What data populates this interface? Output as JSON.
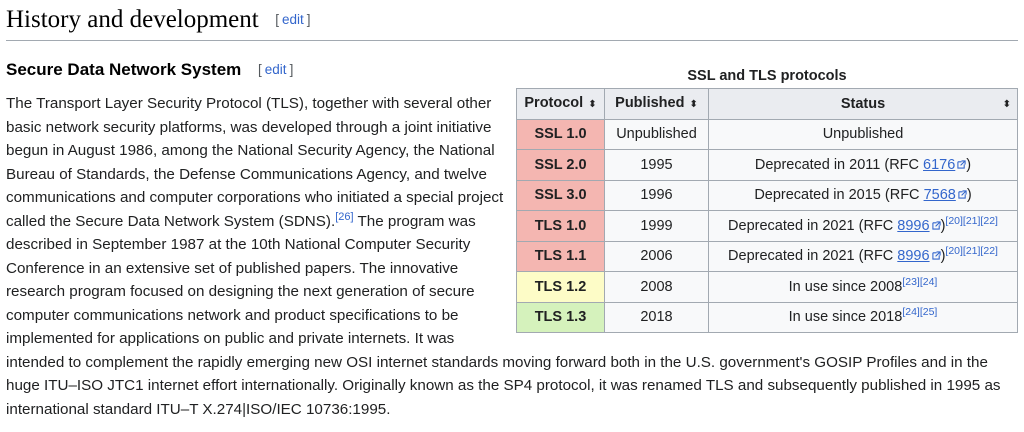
{
  "section": {
    "title": "History and development",
    "edit_label": "edit"
  },
  "subsection": {
    "title": "Secure Data Network System",
    "edit_label": "edit"
  },
  "paragraph": {
    "part1": "The Transport Layer Security Protocol (TLS), together with several other basic network security platforms, was developed through a joint initiative begun in August 1986, among the National Security Agency, the National Bureau of Standards, the Defense Communications Agency, and twelve communications and computer corporations who initiated a special project called the Secure Data Network System (SDNS).",
    "ref1": "[26]",
    "part2": " The program was described in September 1987 at the 10th National Computer Security Conference in an extensive set of published papers. The innovative research program focused on designing the next generation of secure computer communications network and product specifications to be implemented for applications on public and private internets. It was intended to complement the rapidly emerging new OSI internet standards moving forward both in the U.S. government's GOSIP Profiles and in the huge ITU–ISO JTC1 internet effort internationally. Originally known as the SP4 protocol, it was renamed TLS and subsequently published in 1995 as international standard ITU–T X.274|ISO/IEC 10736:1995."
  },
  "table": {
    "caption": "SSL and TLS protocols",
    "headers": [
      "Protocol",
      "Published",
      "Status"
    ],
    "sort_icon": "sort-arrows-icon",
    "colors": {
      "deprecated": "#f4b6b1",
      "current_old": "#fdfcc7",
      "current": "#d5f2bc"
    },
    "rows": [
      {
        "protocol": "SSL 1.0",
        "published": "Unpublished",
        "status_pre": "Unpublished",
        "rfc": "",
        "status_post": "",
        "refs": ""
      },
      {
        "protocol": "SSL 2.0",
        "published": "1995",
        "status_pre": "Deprecated in 2011 (RFC ",
        "rfc": "6176",
        "status_post": ")",
        "refs": ""
      },
      {
        "protocol": "SSL 3.0",
        "published": "1996",
        "status_pre": "Deprecated in 2015 (RFC ",
        "rfc": "7568",
        "status_post": ")",
        "refs": ""
      },
      {
        "protocol": "TLS 1.0",
        "published": "1999",
        "status_pre": "Deprecated in 2021 (RFC ",
        "rfc": "8996",
        "status_post": ")",
        "refs": "[20][21][22]"
      },
      {
        "protocol": "TLS 1.1",
        "published": "2006",
        "status_pre": "Deprecated in 2021 (RFC ",
        "rfc": "8996",
        "status_post": ")",
        "refs": "[20][21][22]"
      },
      {
        "protocol": "TLS 1.2",
        "published": "2008",
        "status_pre": "In use since 2008",
        "rfc": "",
        "status_post": "",
        "refs": "[23][24]"
      },
      {
        "protocol": "TLS 1.3",
        "published": "2018",
        "status_pre": "In use since 2018",
        "rfc": "",
        "status_post": "",
        "refs": "[24][25]"
      }
    ]
  }
}
